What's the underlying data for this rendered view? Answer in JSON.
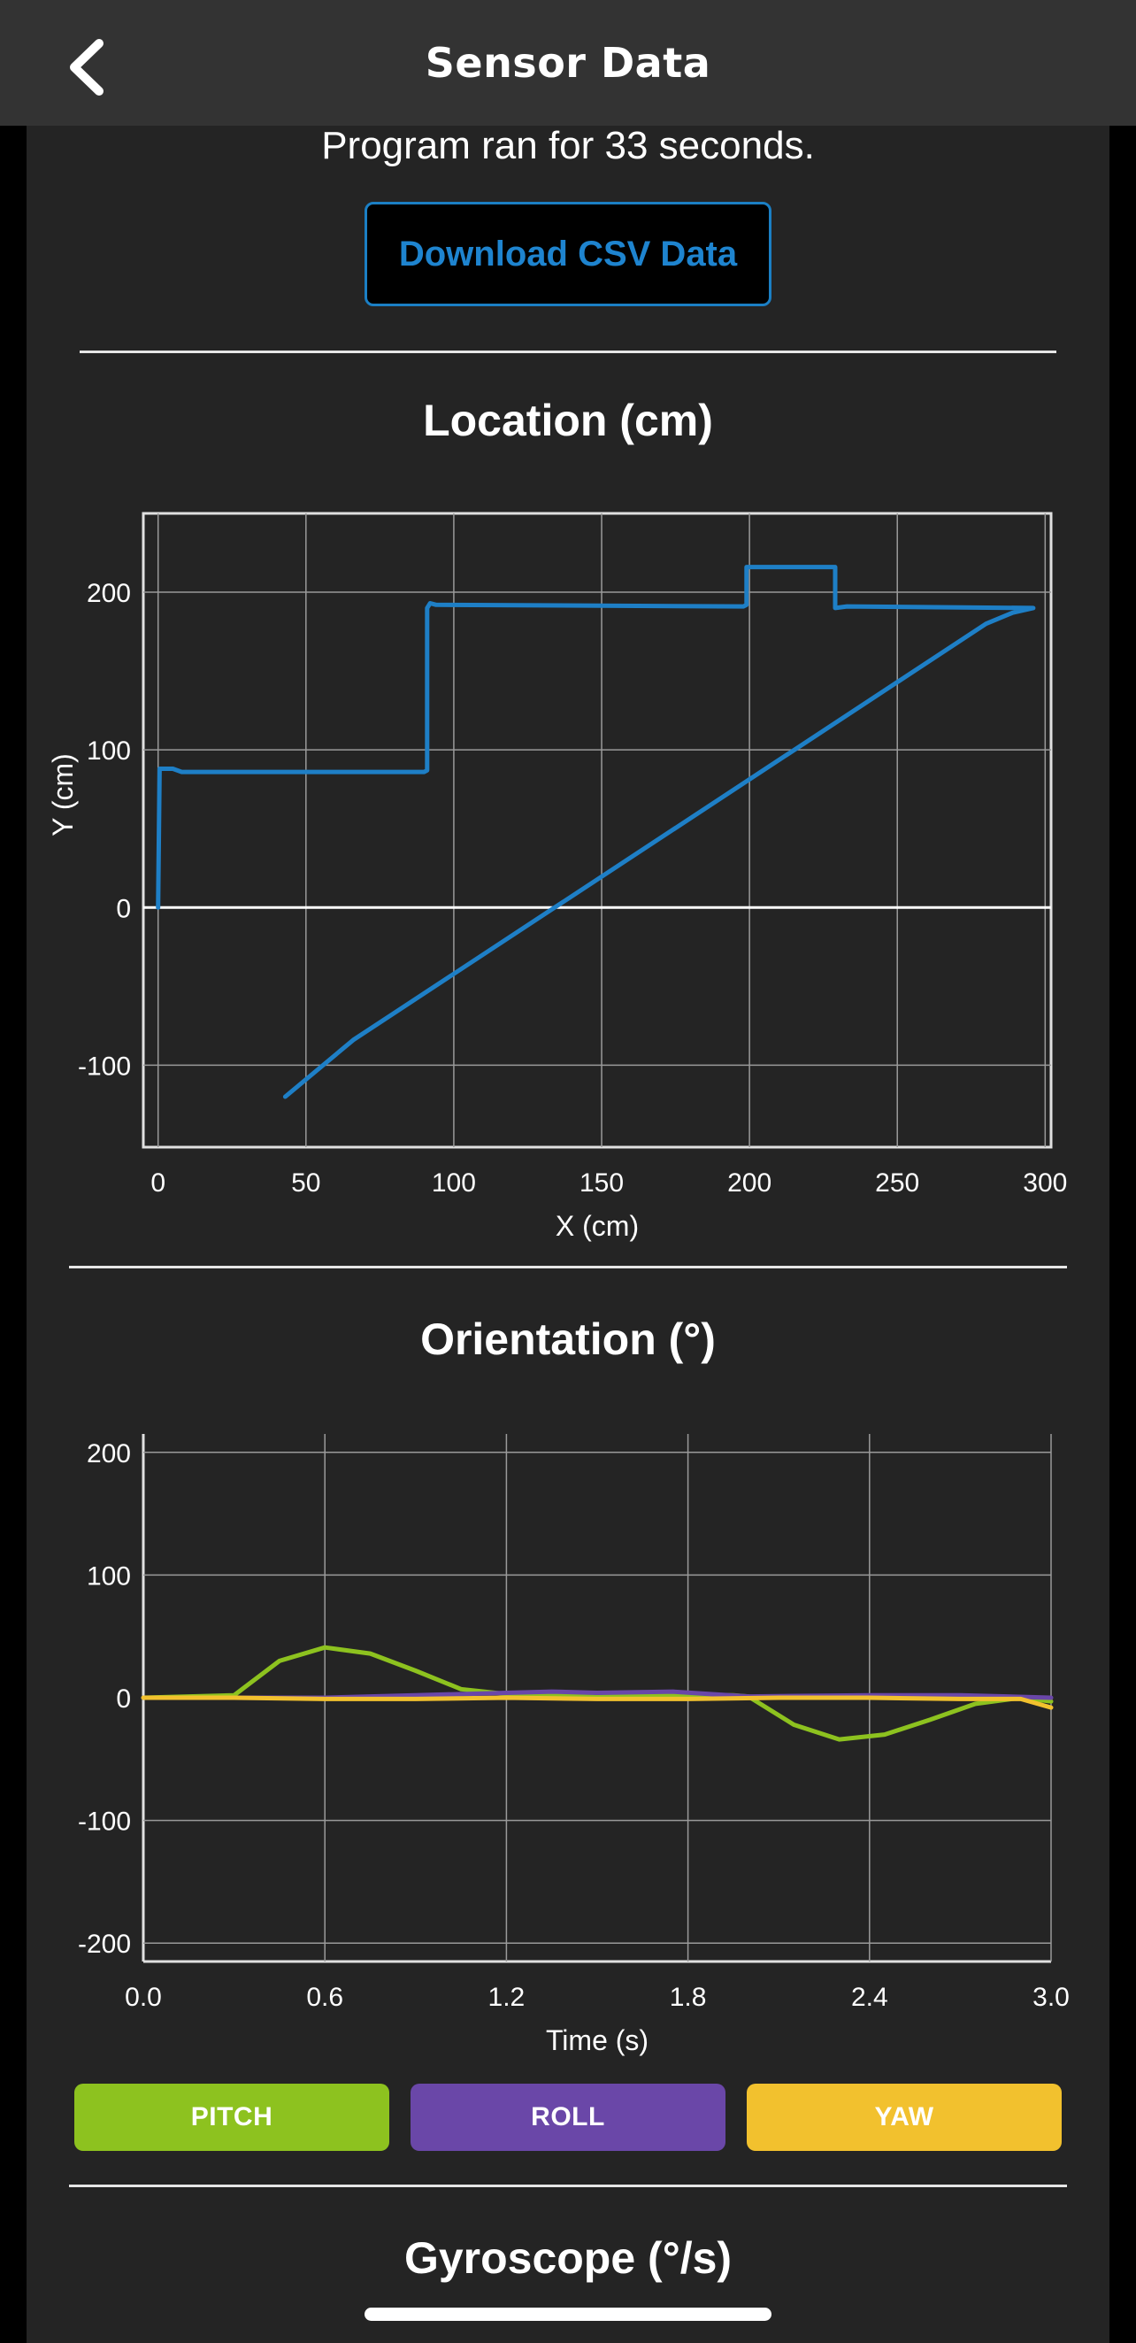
{
  "header": {
    "title": "Sensor Data",
    "back_icon": "chevron-left-icon"
  },
  "runtime_text": "Program ran for 33 seconds.",
  "download_label": "Download CSV Data",
  "location": {
    "title": "Location (cm)",
    "chart_data": {
      "type": "line",
      "xlabel": "X (cm)",
      "ylabel": "Y (cm)",
      "xlim": [
        -5,
        302
      ],
      "ylim": [
        -152,
        250
      ],
      "x_ticks": [
        0,
        50,
        100,
        150,
        200,
        250,
        300
      ],
      "y_ticks": [
        -100,
        0,
        100,
        200
      ],
      "grid": true,
      "series": [
        {
          "color": "#1e7fc6",
          "points": [
            [
              0,
              0
            ],
            [
              0.5,
              88
            ],
            [
              5,
              88
            ],
            [
              8,
              86
            ],
            [
              90,
              86
            ],
            [
              91,
              87
            ],
            [
              91,
              190
            ],
            [
              92,
              193
            ],
            [
              94,
              192
            ],
            [
              198,
              191
            ],
            [
              199,
              192
            ],
            [
              199,
              216
            ],
            [
              229,
              216
            ],
            [
              229,
              190
            ],
            [
              233,
              191
            ],
            [
              296,
              190
            ],
            [
              289,
              187
            ],
            [
              280,
              180
            ],
            [
              66,
              -84
            ],
            [
              43,
              -120
            ]
          ]
        }
      ]
    }
  },
  "orientation": {
    "title": "Orientation (°)",
    "chart_data": {
      "type": "line",
      "xlabel": "Time (s)",
      "ylabel": "",
      "xlim": [
        0,
        3.0
      ],
      "ylim": [
        -215,
        215
      ],
      "x_ticks": [
        "0.0",
        "0.6",
        "1.2",
        "1.8",
        "2.4",
        "3.0"
      ],
      "y_ticks": [
        -200,
        -100,
        0,
        100,
        200
      ],
      "grid": true,
      "series": [
        {
          "name": "PITCH",
          "color": "#8dc21f",
          "x": [
            0,
            0.15,
            0.3,
            0.45,
            0.6,
            0.75,
            0.9,
            1.05,
            1.2,
            1.35,
            1.5,
            1.65,
            1.8,
            1.95,
            2.0,
            2.15,
            2.3,
            2.45,
            2.6,
            2.75,
            2.9,
            3.0
          ],
          "y": [
            0,
            1,
            2,
            30,
            41,
            36,
            22,
            7,
            3,
            2,
            2,
            2,
            2,
            2,
            1,
            -22,
            -34,
            -30,
            -18,
            -5,
            0,
            -3
          ]
        },
        {
          "name": "ROLL",
          "color": "#6a47a8",
          "x": [
            0,
            0.3,
            0.6,
            0.9,
            1.2,
            1.35,
            1.5,
            1.75,
            2.0,
            2.4,
            2.7,
            3.0
          ],
          "y": [
            0,
            0,
            0,
            2,
            4,
            5,
            4,
            5,
            1,
            2,
            2,
            0
          ]
        },
        {
          "name": "YAW",
          "color": "#f2c12e",
          "x": [
            0,
            0.3,
            0.6,
            0.9,
            1.2,
            1.5,
            1.8,
            2.1,
            2.4,
            2.7,
            2.9,
            3.0
          ],
          "y": [
            0,
            0,
            -1,
            -1,
            0,
            -1,
            -1,
            0,
            0,
            -1,
            -1,
            -8
          ]
        }
      ]
    },
    "legend": [
      {
        "label": "PITCH",
        "color": "#8dc21f"
      },
      {
        "label": "ROLL",
        "color": "#6a47a8"
      },
      {
        "label": "YAW",
        "color": "#f2c12e"
      }
    ]
  },
  "gyroscope": {
    "title": "Gyroscope (°/s)"
  }
}
